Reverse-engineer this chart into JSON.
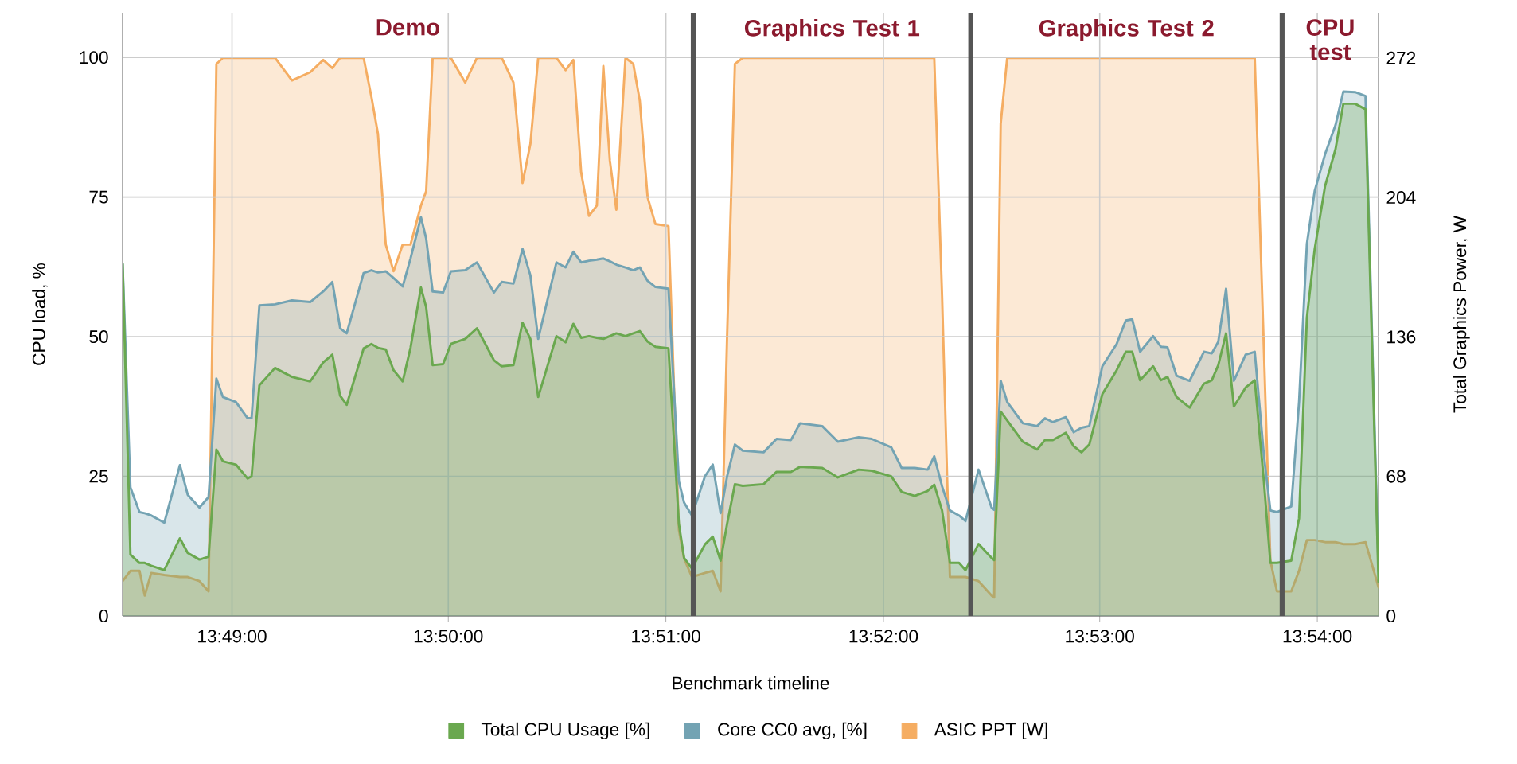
{
  "chart_data": {
    "type": "area",
    "xlabel": "Benchmark timeline",
    "ylabel": "CPU load, %",
    "y2label": "Total Graphics Power, W",
    "x": [
      13.8083,
      13.8089,
      13.8096,
      13.81,
      13.8105,
      13.8115,
      13.8127,
      13.8133,
      13.8142,
      13.8149,
      13.8155,
      13.816,
      13.817,
      13.8179,
      13.8182,
      13.8188,
      13.82,
      13.8213,
      13.8227,
      13.8237,
      13.8244,
      13.825,
      13.8255,
      13.8268,
      13.8274,
      13.8279,
      13.8285,
      13.8291,
      13.8298,
      13.8304,
      13.8312,
      13.8316,
      13.8321,
      13.8329,
      13.8335,
      13.8346,
      13.8355,
      13.8368,
      13.8374,
      13.8383,
      13.839,
      13.8396,
      13.8402,
      13.8416,
      13.8423,
      13.8429,
      13.8435,
      13.8441,
      13.8447,
      13.8452,
      13.8457,
      13.8462,
      13.8469,
      13.8475,
      13.848,
      13.8486,
      13.8492,
      13.8502,
      13.851,
      13.8514,
      13.852,
      13.853,
      13.8536,
      13.8542,
      13.8547,
      13.8553,
      13.8559,
      13.8575,
      13.8585,
      13.8596,
      13.8603,
      13.862,
      13.8632,
      13.8648,
      13.8658,
      13.8673,
      13.8681,
      13.8691,
      13.8701,
      13.8706,
      13.8712,
      13.8718,
      13.8725,
      13.873,
      13.874,
      13.875,
      13.8752,
      13.8757,
      13.8762,
      13.8774,
      13.8785,
      13.8791,
      13.8797,
      13.8807,
      13.8813,
      13.8819,
      13.8825,
      13.8835,
      13.8846,
      13.8853,
      13.8858,
      13.8864,
      13.8874,
      13.888,
      13.8885,
      13.8892,
      13.8902,
      13.8913,
      13.8919,
      13.8924,
      13.893,
      13.8936,
      13.8945,
      13.8952,
      13.8959,
      13.8964,
      13.8969,
      13.898,
      13.8986,
      13.8992,
      13.8998,
      13.9006,
      13.9014,
      13.902,
      13.9029,
      13.9037,
      13.9047
    ],
    "series": [
      {
        "name": "Total CPU Usage [%]",
        "color": "#6aa84f",
        "values": [
          63,
          11,
          9.5,
          9.5,
          9,
          8.2,
          13.9,
          11.3,
          10.1,
          10.6,
          29.8,
          27.7,
          27.1,
          24.6,
          25,
          41.3,
          44.4,
          42.8,
          42,
          45.4,
          46.8,
          39.4,
          37.8,
          47.9,
          48.7,
          48,
          47.7,
          44,
          42,
          48,
          58.8,
          55.3,
          44.9,
          45.1,
          48.7,
          49.6,
          51.5,
          45.8,
          44.7,
          44.9,
          52.5,
          49.6,
          39.2,
          50.1,
          49,
          52.3,
          49.8,
          50.1,
          49.8,
          49.6,
          50.1,
          50.6,
          50.1,
          50.6,
          51,
          49.1,
          48.2,
          47.9,
          16.5,
          10.4,
          8.5,
          12.8,
          14.2,
          9.9,
          16.5,
          23.6,
          23.3,
          23.6,
          25.8,
          25.8,
          26.7,
          26.5,
          24.8,
          26.2,
          26,
          25,
          22.2,
          21.5,
          22.4,
          23.5,
          18.9,
          9.5,
          9.5,
          8.2,
          12.9,
          10.4,
          10,
          36.6,
          35,
          31.2,
          29.8,
          31.5,
          31.5,
          32.8,
          30.4,
          29.3,
          30.7,
          39.7,
          44,
          47.3,
          47.3,
          42.2,
          44.7,
          42.2,
          42.8,
          39.2,
          37.3,
          41.6,
          42.2,
          44.9,
          50.6,
          37.5,
          40.9,
          42.2,
          24.1,
          9.5,
          9.5,
          9.9,
          17.5,
          53.4,
          65.7,
          77,
          83.6,
          91.7,
          91.7,
          90.7,
          6.1
        ]
      },
      {
        "name": "Core CC0 avg, [%]",
        "color": "#73a3b3",
        "values": [
          63,
          23,
          18.6,
          18.4,
          18,
          16.7,
          27,
          21.7,
          19.4,
          21.3,
          42.5,
          39.2,
          38.3,
          35.4,
          35.4,
          55.6,
          55.8,
          56.5,
          56.2,
          58.1,
          59.8,
          51.5,
          50.6,
          61.4,
          61.9,
          61.5,
          61.7,
          60.5,
          59,
          64,
          71.4,
          67.6,
          58.1,
          57.9,
          61.7,
          61.9,
          63.3,
          57.9,
          59.8,
          59.5,
          65.7,
          61,
          49.6,
          63.3,
          62.4,
          65.2,
          63.3,
          63.6,
          63.8,
          64,
          63.5,
          62.9,
          62.4,
          61.9,
          62.4,
          60,
          58.9,
          58.6,
          24.1,
          20.3,
          18,
          25,
          27.1,
          18.4,
          25,
          30.7,
          29.6,
          29.3,
          31.7,
          31.5,
          34.5,
          34,
          31.2,
          32,
          31.7,
          30.2,
          26.5,
          26.5,
          26.2,
          28.6,
          23.2,
          18.9,
          18,
          17,
          26.2,
          19.4,
          19,
          42.1,
          38.3,
          34.5,
          34,
          35.4,
          34.7,
          35.6,
          32.9,
          33.7,
          34,
          44.7,
          48.7,
          52.9,
          53.1,
          47.3,
          50.1,
          48.2,
          48.1,
          43,
          42.1,
          47.3,
          47,
          49.1,
          58.6,
          42.1,
          46.8,
          47.3,
          28.8,
          18.9,
          18.6,
          19.6,
          38.3,
          66.6,
          76.1,
          82.7,
          87.9,
          93.9,
          93.8,
          93.1,
          8
        ]
      },
      {
        "name": "ASIC PPT [W]",
        "color": "#f5ad62",
        "axis": "y2",
        "values": [
          17,
          22,
          22,
          10,
          21,
          20,
          19,
          19,
          17,
          12,
          269,
          272,
          272,
          272,
          272,
          272,
          272,
          261,
          265,
          271,
          267,
          272,
          272,
          272,
          253,
          235,
          181,
          168,
          181,
          181,
          200,
          207,
          272,
          272,
          272,
          260,
          272,
          272,
          272,
          260,
          211,
          230,
          272,
          272,
          266,
          271,
          216,
          195,
          200,
          268,
          222,
          198,
          272,
          269,
          251,
          204,
          191,
          190,
          42,
          28,
          19,
          21,
          22,
          12,
          136,
          269,
          272,
          272,
          272,
          272,
          272,
          272,
          272,
          272,
          272,
          272,
          272,
          272,
          272,
          272,
          156,
          19,
          19,
          19,
          17,
          10,
          9,
          240,
          272,
          272,
          272,
          272,
          272,
          272,
          272,
          272,
          272,
          272,
          272,
          272,
          272,
          272,
          272,
          272,
          272,
          272,
          272,
          272,
          272,
          272,
          272,
          272,
          272,
          272,
          130,
          27,
          12,
          12,
          22,
          37,
          37,
          36,
          36,
          35,
          35,
          36,
          14
        ]
      }
    ],
    "xlim": [
      13.8083,
      13.9047
    ],
    "xticks": [
      {
        "value": 13.8167,
        "label": "13:49:00"
      },
      {
        "value": 13.8333,
        "label": "13:50:00"
      },
      {
        "value": 13.85,
        "label": "13:51:00"
      },
      {
        "value": 13.8667,
        "label": "13:52:00"
      },
      {
        "value": 13.8833,
        "label": "13:53:00"
      },
      {
        "value": 13.9,
        "label": "13:54:00"
      }
    ],
    "ylim": [
      0,
      108
    ],
    "yticks": [
      0,
      25,
      50,
      75,
      100
    ],
    "y2lim": [
      0,
      294
    ],
    "y2ticks": [
      0,
      68,
      136,
      204,
      272
    ],
    "grid": true,
    "legend": "bottom",
    "ref_lines": [
      {
        "axis": "x",
        "value": 13.8521,
        "color": "#555555"
      },
      {
        "axis": "x",
        "value": 13.8734,
        "color": "#555555"
      },
      {
        "axis": "x",
        "value": 13.8973,
        "color": "#555555"
      }
    ],
    "annotations": [
      "Demo",
      "Graphics Test 1",
      "Graphics Test 2",
      "CPU test"
    ]
  }
}
